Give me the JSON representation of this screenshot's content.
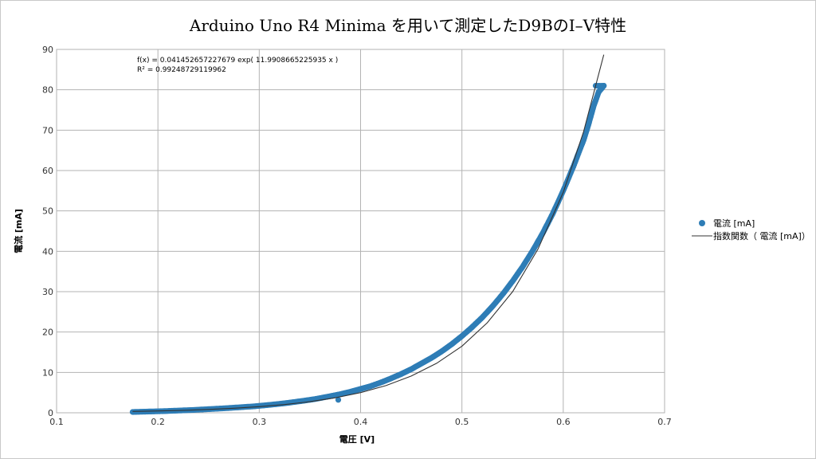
{
  "chart_data": {
    "type": "scatter",
    "title": "Arduino Uno R4 Minima を用いて測定したD9BのI–V特性",
    "xlabel": "電圧 [V]",
    "ylabel": "電流 [mA]",
    "xlim": [
      0.1,
      0.7
    ],
    "ylim": [
      0,
      90
    ],
    "xticks": [
      0.1,
      0.2,
      0.3,
      0.4,
      0.5,
      0.6,
      0.7
    ],
    "xtick_labels": [
      "0.1",
      "0.2",
      "0.3",
      "0.4",
      "0.5",
      "0.6",
      "0.7"
    ],
    "yticks": [
      0,
      10,
      20,
      30,
      40,
      50,
      60,
      70,
      80,
      90
    ],
    "ytick_labels": [
      "0",
      "10",
      "20",
      "30",
      "40",
      "50",
      "60",
      "70",
      "80",
      "90"
    ],
    "grid": true,
    "legend_position": "right",
    "series": [
      {
        "name": "電流 [mA]",
        "kind": "scatter",
        "color": "#2e7db6",
        "x": [
          0.175,
          0.19,
          0.205,
          0.22,
          0.235,
          0.25,
          0.265,
          0.28,
          0.295,
          0.31,
          0.325,
          0.34,
          0.355,
          0.37,
          0.38,
          0.39,
          0.4,
          0.41,
          0.42,
          0.43,
          0.44,
          0.45,
          0.46,
          0.47,
          0.48,
          0.49,
          0.5,
          0.51,
          0.52,
          0.53,
          0.54,
          0.55,
          0.56,
          0.57,
          0.58,
          0.59,
          0.6,
          0.61,
          0.62,
          0.625,
          0.63,
          0.635,
          0.64,
          0.378
        ],
        "y": [
          0.2,
          0.3,
          0.4,
          0.55,
          0.7,
          0.9,
          1.1,
          1.35,
          1.6,
          1.95,
          2.35,
          2.85,
          3.4,
          4.1,
          4.6,
          5.2,
          5.9,
          6.6,
          7.5,
          8.5,
          9.6,
          10.8,
          12.2,
          13.6,
          15.2,
          17.0,
          19.0,
          21.2,
          23.6,
          26.3,
          29.3,
          32.6,
          36.2,
          40.2,
          44.6,
          49.5,
          55.0,
          61.0,
          67.5,
          71.5,
          76.0,
          79.5,
          81.0,
          3.2
        ]
      },
      {
        "name": "指数関数（ 電流 [mA]）",
        "kind": "line",
        "color": "#333333",
        "x": [
          0.175,
          0.2,
          0.225,
          0.25,
          0.275,
          0.3,
          0.325,
          0.35,
          0.375,
          0.4,
          0.425,
          0.45,
          0.475,
          0.5,
          0.525,
          0.55,
          0.575,
          0.6,
          0.62,
          0.64
        ],
        "y": [
          0.34,
          0.46,
          0.62,
          0.83,
          1.12,
          1.51,
          2.04,
          2.75,
          3.71,
          5.0,
          6.74,
          9.09,
          12.26,
          16.5,
          22.3,
          30.0,
          40.5,
          54.6,
          69.6,
          88.7
        ]
      }
    ],
    "annotations": [
      "f(x) = 0.041452657227679 exp( 11.9908665225935 x )",
      "R² = 0.99248729119962"
    ]
  }
}
